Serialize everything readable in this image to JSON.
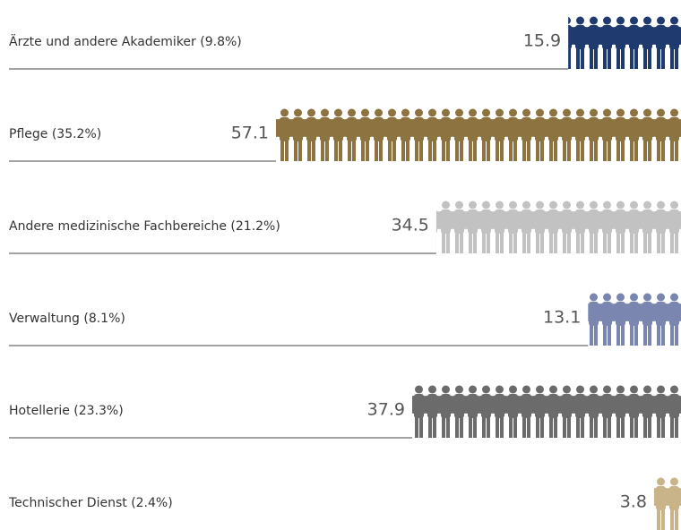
{
  "chart_data": {
    "type": "bar",
    "orientation": "horizontal",
    "categories": [
      "Ärzte und andere Akademiker (9.8%)",
      "Pflege (35.2%)",
      "Andere medizinische Fachbereiche (21.2%)",
      "Verwaltung (8.1%)",
      "Hotellerie (23.3%)",
      "Technischer Dienst (2.4%)"
    ],
    "values": [
      15.9,
      57.1,
      34.5,
      13.1,
      37.9,
      3.8
    ],
    "colors": [
      "#1f3a6e",
      "#8c7340",
      "#c2c2c2",
      "#7a86b0",
      "#6b6b6b",
      "#c9b48a"
    ]
  }
}
